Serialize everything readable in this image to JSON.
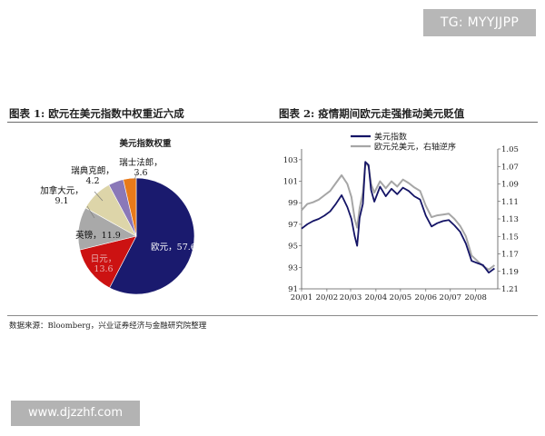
{
  "watermarks": {
    "top": "TG: MYYJJPP",
    "bottom": "www.djzzhf.com"
  },
  "figures": {
    "left_title": "图表 1:  欧元在美元指数中权重近六成",
    "right_title": "图表 2:  疫情期间欧元走强推动美元贬值"
  },
  "source_note": "数据来源：Bloomberg，兴业证券经济与金融研究院整理",
  "chart_data": [
    {
      "type": "pie",
      "title": "美元指数权重",
      "slices": [
        {
          "name": "欧元",
          "value": 57.6,
          "label": "欧元，57.6",
          "color": "#1a1a6e"
        },
        {
          "name": "日元",
          "value": 13.6,
          "label": "日元，13.6",
          "color": "#cc1212"
        },
        {
          "name": "英镑",
          "value": 11.9,
          "label": "英镑，11.9",
          "color": "#a9a9a9"
        },
        {
          "name": "加拿大元",
          "value": 9.1,
          "label": "加拿大元，9.1",
          "color": "#ddd5a9"
        },
        {
          "name": "瑞典克朗",
          "value": 4.2,
          "label": "瑞典克朗，4.2",
          "color": "#8a78b8"
        },
        {
          "name": "瑞士法郎",
          "value": 3.6,
          "label": "瑞士法郎，3.6",
          "color": "#e87a1a"
        }
      ]
    },
    {
      "type": "line",
      "x_ticks": [
        "20/01",
        "20/02",
        "20/03",
        "20/04",
        "20/05",
        "20/06",
        "20/07",
        "20/08"
      ],
      "y_left_ticks": [
        "91",
        "93",
        "95",
        "97",
        "99",
        "101",
        "103"
      ],
      "y_right_ticks": [
        "1.05",
        "1.07",
        "1.09",
        "1.11",
        "1.13",
        "1.15",
        "1.17",
        "1.19",
        "1.21"
      ],
      "y_left_range": [
        91,
        104
      ],
      "y_right_range": [
        1.05,
        1.21
      ],
      "y_right_inverted": true,
      "legend_position": "top-left",
      "series": [
        {
          "name": "美元指数",
          "axis": "left",
          "color": "#141466",
          "x": [
            "2020-01-01",
            "2020-01-08",
            "2020-01-15",
            "2020-01-22",
            "2020-01-29",
            "2020-02-05",
            "2020-02-12",
            "2020-02-19",
            "2020-02-26",
            "2020-03-02",
            "2020-03-06",
            "2020-03-09",
            "2020-03-12",
            "2020-03-16",
            "2020-03-19",
            "2020-03-23",
            "2020-03-26",
            "2020-03-30",
            "2020-04-06",
            "2020-04-13",
            "2020-04-20",
            "2020-04-27",
            "2020-05-04",
            "2020-05-11",
            "2020-05-18",
            "2020-05-25",
            "2020-06-01",
            "2020-06-08",
            "2020-06-15",
            "2020-06-22",
            "2020-06-29",
            "2020-07-06",
            "2020-07-13",
            "2020-07-20",
            "2020-07-27",
            "2020-08-03",
            "2020-08-10",
            "2020-08-17",
            "2020-08-24"
          ],
          "y": [
            96.6,
            97.0,
            97.3,
            97.5,
            97.8,
            98.2,
            98.9,
            99.7,
            98.6,
            97.5,
            95.9,
            95.0,
            97.6,
            98.9,
            102.8,
            102.5,
            100.2,
            99.1,
            100.5,
            99.6,
            100.3,
            99.8,
            100.4,
            100.1,
            99.6,
            99.3,
            97.8,
            96.8,
            97.1,
            97.3,
            97.4,
            96.9,
            96.3,
            95.2,
            93.6,
            93.4,
            93.2,
            92.5,
            92.9
          ]
        },
        {
          "name": "欧元兑美元，右轴逆序",
          "axis": "right",
          "color": "#a6a6a6",
          "x": [
            "2020-01-01",
            "2020-01-08",
            "2020-01-15",
            "2020-01-22",
            "2020-01-29",
            "2020-02-05",
            "2020-02-12",
            "2020-02-19",
            "2020-02-26",
            "2020-03-02",
            "2020-03-06",
            "2020-03-09",
            "2020-03-12",
            "2020-03-16",
            "2020-03-19",
            "2020-03-23",
            "2020-03-26",
            "2020-03-30",
            "2020-04-06",
            "2020-04-13",
            "2020-04-20",
            "2020-04-27",
            "2020-05-04",
            "2020-05-11",
            "2020-05-18",
            "2020-05-25",
            "2020-06-01",
            "2020-06-08",
            "2020-06-15",
            "2020-06-22",
            "2020-06-29",
            "2020-07-06",
            "2020-07-13",
            "2020-07-20",
            "2020-07-27",
            "2020-08-03",
            "2020-08-10",
            "2020-08-17",
            "2020-08-24"
          ],
          "y": [
            1.12,
            1.113,
            1.111,
            1.108,
            1.103,
            1.098,
            1.089,
            1.08,
            1.09,
            1.105,
            1.13,
            1.14,
            1.118,
            1.1,
            1.066,
            1.07,
            1.09,
            1.1,
            1.087,
            1.095,
            1.087,
            1.093,
            1.085,
            1.089,
            1.094,
            1.098,
            1.115,
            1.128,
            1.126,
            1.125,
            1.124,
            1.13,
            1.138,
            1.15,
            1.172,
            1.178,
            1.184,
            1.188,
            1.183
          ]
        }
      ]
    }
  ]
}
